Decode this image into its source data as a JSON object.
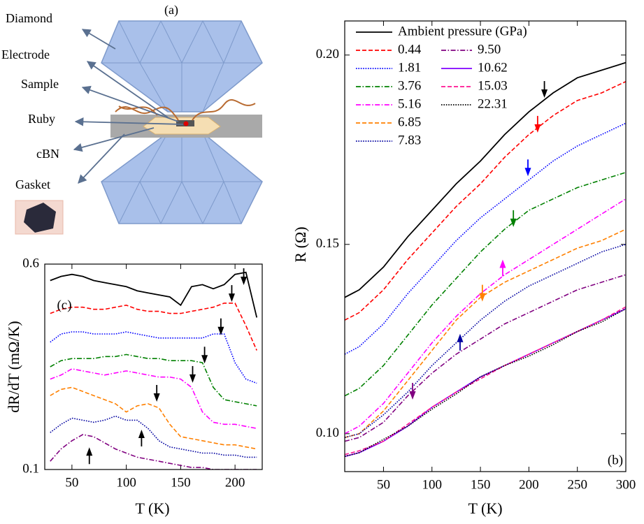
{
  "panel_a": {
    "label": "(a)",
    "labels": [
      "Diamond",
      "Electrode",
      "Sample",
      "Ruby",
      "cBN",
      "Gasket"
    ]
  },
  "chart_data": [
    {
      "type": "line",
      "panel_label": "(b)",
      "xlabel": "T (K)",
      "ylabel": "R (Ω)",
      "x": [
        10,
        25,
        50,
        75,
        100,
        125,
        150,
        175,
        200,
        225,
        250,
        275,
        300
      ],
      "xlim": [
        10,
        300
      ],
      "xticks": [
        50,
        100,
        150,
        200,
        250,
        300
      ],
      "ylim": [
        0.09,
        0.209
      ],
      "yticks": [
        {
          "value": 0.1,
          "label": "0.10"
        },
        0.15,
        {
          "value": 0.2,
          "label": "0.20"
        }
      ],
      "legend": "upper left",
      "series": [
        {
          "name": "Ambient pressure (GPa)",
          "color": "#000000",
          "dash": "solid",
          "values": [
            0.136,
            0.138,
            0.144,
            0.152,
            0.159,
            0.166,
            0.172,
            0.179,
            0.185,
            0.19,
            0.194,
            0.196,
            0.198
          ]
        },
        {
          "name": "0.44",
          "color": "#ff0000",
          "dash": "dashed",
          "values": [
            0.13,
            0.132,
            0.138,
            0.146,
            0.153,
            0.16,
            0.166,
            0.173,
            0.179,
            0.184,
            0.188,
            0.19,
            0.193
          ]
        },
        {
          "name": "1.81",
          "color": "#0000ff",
          "dash": "dotted",
          "values": [
            0.121,
            0.123,
            0.129,
            0.137,
            0.144,
            0.151,
            0.157,
            0.162,
            0.167,
            0.172,
            0.176,
            0.179,
            0.182
          ]
        },
        {
          "name": "3.76",
          "color": "#008000",
          "dash": "dashdot",
          "values": [
            0.11,
            0.112,
            0.118,
            0.126,
            0.134,
            0.141,
            0.148,
            0.154,
            0.159,
            0.162,
            0.165,
            0.167,
            0.169
          ]
        },
        {
          "name": "5.16",
          "color": "#ff00ff",
          "dash": "dashdot",
          "values": [
            0.1,
            0.102,
            0.108,
            0.116,
            0.124,
            0.131,
            0.137,
            0.142,
            0.146,
            0.15,
            0.154,
            0.158,
            0.162
          ]
        },
        {
          "name": "6.85",
          "color": "#ff8000",
          "dash": "dashed",
          "values": [
            0.099,
            0.1,
            0.106,
            0.114,
            0.122,
            0.13,
            0.136,
            0.14,
            0.143,
            0.146,
            0.149,
            0.151,
            0.154
          ]
        },
        {
          "name": "7.83",
          "color": "#0000a0",
          "dash": "dotted",
          "values": [
            0.099,
            0.1,
            0.105,
            0.111,
            0.118,
            0.124,
            0.13,
            0.135,
            0.139,
            0.142,
            0.145,
            0.148,
            0.15
          ]
        },
        {
          "name": "9.50",
          "color": "#800080",
          "dash": "dashdot",
          "values": [
            0.098,
            0.099,
            0.103,
            0.11,
            0.116,
            0.121,
            0.125,
            0.129,
            0.132,
            0.135,
            0.138,
            0.14,
            0.142
          ]
        },
        {
          "name": "10.62",
          "color": "#8000ff",
          "dash": "solid",
          "values": [
            0.094,
            0.095,
            0.098,
            0.102,
            0.107,
            0.111,
            0.115,
            0.118,
            0.121,
            0.124,
            0.127,
            0.13,
            0.133
          ]
        },
        {
          "name": "15.03",
          "color": "#ff1493",
          "dash": "dashed",
          "values": [
            0.0945,
            0.0955,
            0.098,
            0.1025,
            0.107,
            0.111,
            0.1145,
            0.118,
            0.121,
            0.124,
            0.127,
            0.13,
            0.1335
          ]
        },
        {
          "name": "22.31",
          "color": "#000000",
          "dash": "dotted",
          "values": [
            0.094,
            0.095,
            0.0985,
            0.102,
            0.1065,
            0.1105,
            0.115,
            0.118,
            0.1205,
            0.1235,
            0.127,
            0.1295,
            0.133
          ]
        }
      ],
      "arrows": [
        {
          "x": 216,
          "y": 0.1887,
          "dir": "down",
          "color": "#000000"
        },
        {
          "x": 209,
          "y": 0.1795,
          "dir": "down",
          "color": "#ff0000"
        },
        {
          "x": 199,
          "y": 0.168,
          "dir": "down",
          "color": "#0000ff"
        },
        {
          "x": 184,
          "y": 0.1546,
          "dir": "down",
          "color": "#008000"
        },
        {
          "x": 173,
          "y": 0.146,
          "dir": "up",
          "color": "#ff00ff"
        },
        {
          "x": 152,
          "y": 0.1349,
          "dir": "down",
          "color": "#ff8000"
        },
        {
          "x": 129,
          "y": 0.1264,
          "dir": "up",
          "color": "#0000a0"
        },
        {
          "x": 80,
          "y": 0.109,
          "dir": "down",
          "color": "#800080"
        }
      ]
    },
    {
      "type": "line",
      "panel_label": "(c)",
      "xlabel": "T (K)",
      "ylabel": "dR/dT (mΩ/K)",
      "x": [
        30,
        40,
        50,
        60,
        70,
        80,
        90,
        100,
        110,
        120,
        130,
        140,
        150,
        160,
        170,
        180,
        190,
        200,
        210,
        220
      ],
      "xlim": [
        25,
        225
      ],
      "xticks": [
        50,
        100,
        150,
        200
      ],
      "ylim": [
        0.1,
        0.6
      ],
      "yticks": [
        0.1,
        0.6
      ],
      "series": [
        {
          "color": "#000000",
          "dash": "solid",
          "values": [
            0.56,
            0.57,
            0.575,
            0.57,
            0.56,
            0.555,
            0.55,
            0.545,
            0.535,
            0.53,
            0.525,
            0.52,
            0.5,
            0.545,
            0.55,
            0.54,
            0.55,
            0.575,
            0.58,
            0.47
          ]
        },
        {
          "color": "#ff0000",
          "dash": "dashed",
          "values": [
            0.48,
            0.49,
            0.495,
            0.495,
            0.49,
            0.49,
            0.495,
            0.5,
            0.49,
            0.485,
            0.485,
            0.48,
            0.48,
            0.485,
            0.49,
            0.495,
            0.505,
            0.505,
            0.45,
            0.39
          ]
        },
        {
          "color": "#0000ff",
          "dash": "dotted",
          "values": [
            0.41,
            0.43,
            0.435,
            0.435,
            0.43,
            0.43,
            0.43,
            0.435,
            0.43,
            0.425,
            0.42,
            0.42,
            0.42,
            0.42,
            0.42,
            0.43,
            0.43,
            0.36,
            0.32,
            0.31
          ]
        },
        {
          "color": "#008000",
          "dash": "dashdot",
          "values": [
            0.35,
            0.365,
            0.37,
            0.37,
            0.37,
            0.375,
            0.375,
            0.38,
            0.375,
            0.37,
            0.37,
            0.365,
            0.365,
            0.365,
            0.36,
            0.3,
            0.27,
            0.265,
            0.26,
            0.255
          ]
        },
        {
          "color": "#ff00ff",
          "dash": "dashdot",
          "values": [
            0.32,
            0.33,
            0.345,
            0.34,
            0.335,
            0.33,
            0.335,
            0.34,
            0.335,
            0.33,
            0.325,
            0.325,
            0.32,
            0.3,
            0.24,
            0.215,
            0.21,
            0.21,
            0.205,
            0.2
          ]
        },
        {
          "color": "#ff8000",
          "dash": "dashed",
          "values": [
            0.28,
            0.295,
            0.3,
            0.29,
            0.28,
            0.27,
            0.26,
            0.24,
            0.255,
            0.26,
            0.25,
            0.21,
            0.18,
            0.175,
            0.17,
            0.165,
            0.16,
            0.16,
            0.155,
            0.15
          ]
        },
        {
          "color": "#0000a0",
          "dash": "dotted",
          "values": [
            0.19,
            0.21,
            0.225,
            0.22,
            0.215,
            0.22,
            0.23,
            0.22,
            0.22,
            0.2,
            0.17,
            0.155,
            0.15,
            0.145,
            0.14,
            0.14,
            0.135,
            0.135,
            0.13,
            0.13
          ]
        },
        {
          "color": "#800080",
          "dash": "dashdot",
          "values": [
            0.12,
            0.15,
            0.17,
            0.185,
            0.18,
            0.165,
            0.15,
            0.14,
            0.13,
            0.125,
            0.12,
            0.115,
            0.11,
            0.105,
            0.105,
            0.1,
            0.1,
            0.1,
            0.1,
            0.1
          ]
        }
      ],
      "arrows": [
        {
          "x": 208,
          "y": 0.549,
          "dir": "down",
          "color": "#000000"
        },
        {
          "x": 197,
          "y": 0.508,
          "dir": "down",
          "color": "#000000"
        },
        {
          "x": 187,
          "y": 0.427,
          "dir": "down",
          "color": "#000000"
        },
        {
          "x": 172,
          "y": 0.358,
          "dir": "down",
          "color": "#000000"
        },
        {
          "x": 161,
          "y": 0.311,
          "dir": "down",
          "color": "#000000"
        },
        {
          "x": 128,
          "y": 0.265,
          "dir": "down",
          "color": "#000000"
        },
        {
          "x": 114,
          "y": 0.197,
          "dir": "up",
          "color": "#000000"
        },
        {
          "x": 66,
          "y": 0.154,
          "dir": "up",
          "color": "#000000"
        }
      ]
    }
  ]
}
